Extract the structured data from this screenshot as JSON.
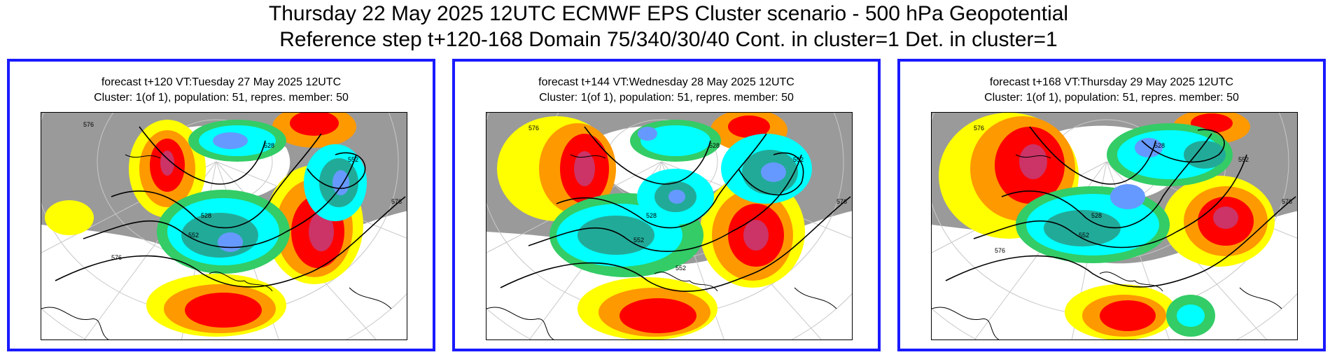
{
  "header": {
    "title_line1": "Thursday 22 May 2025 12UTC ECMWF EPS Cluster scenario - 500 hPa Geopotential",
    "title_line2": "Reference step t+120-168 Domain 75/340/30/40 Cont. in cluster=1 Det. in cluster=1"
  },
  "panels": [
    {
      "line1": "forecast t+120 VT:Tuesday 27 May 2025 12UTC",
      "line2": "Cluster: 1(of 1), population: 51, repres. member: 50",
      "contour_labels": [
        "576",
        "552",
        "528",
        "576",
        "552",
        "528",
        "576"
      ]
    },
    {
      "line1": "forecast t+144 VT:Wednesday 28 May 2025 12UTC",
      "line2": "Cluster: 1(of 1), population: 51, repres. member: 50",
      "contour_labels": [
        "576",
        "552",
        "528",
        "576",
        "552",
        "528",
        "552"
      ]
    },
    {
      "line1": "forecast t+168 VT:Thursday 29 May 2025 12UTC",
      "line2": "Cluster: 1(of 1), population: 51, repres. member: 50",
      "contour_labels": [
        "576",
        "552",
        "528",
        "576",
        "552",
        "528",
        "576"
      ]
    }
  ],
  "colors": {
    "frame": "#1a1aff",
    "land": "#9a9a9a",
    "ocean": "#ffffff",
    "positive_anomaly": [
      "#ffff00",
      "#ff9900",
      "#ff0000",
      "#cc3366"
    ],
    "negative_anomaly": [
      "#33cc66",
      "#00ffff",
      "#22aa99",
      "#6699ff"
    ]
  }
}
